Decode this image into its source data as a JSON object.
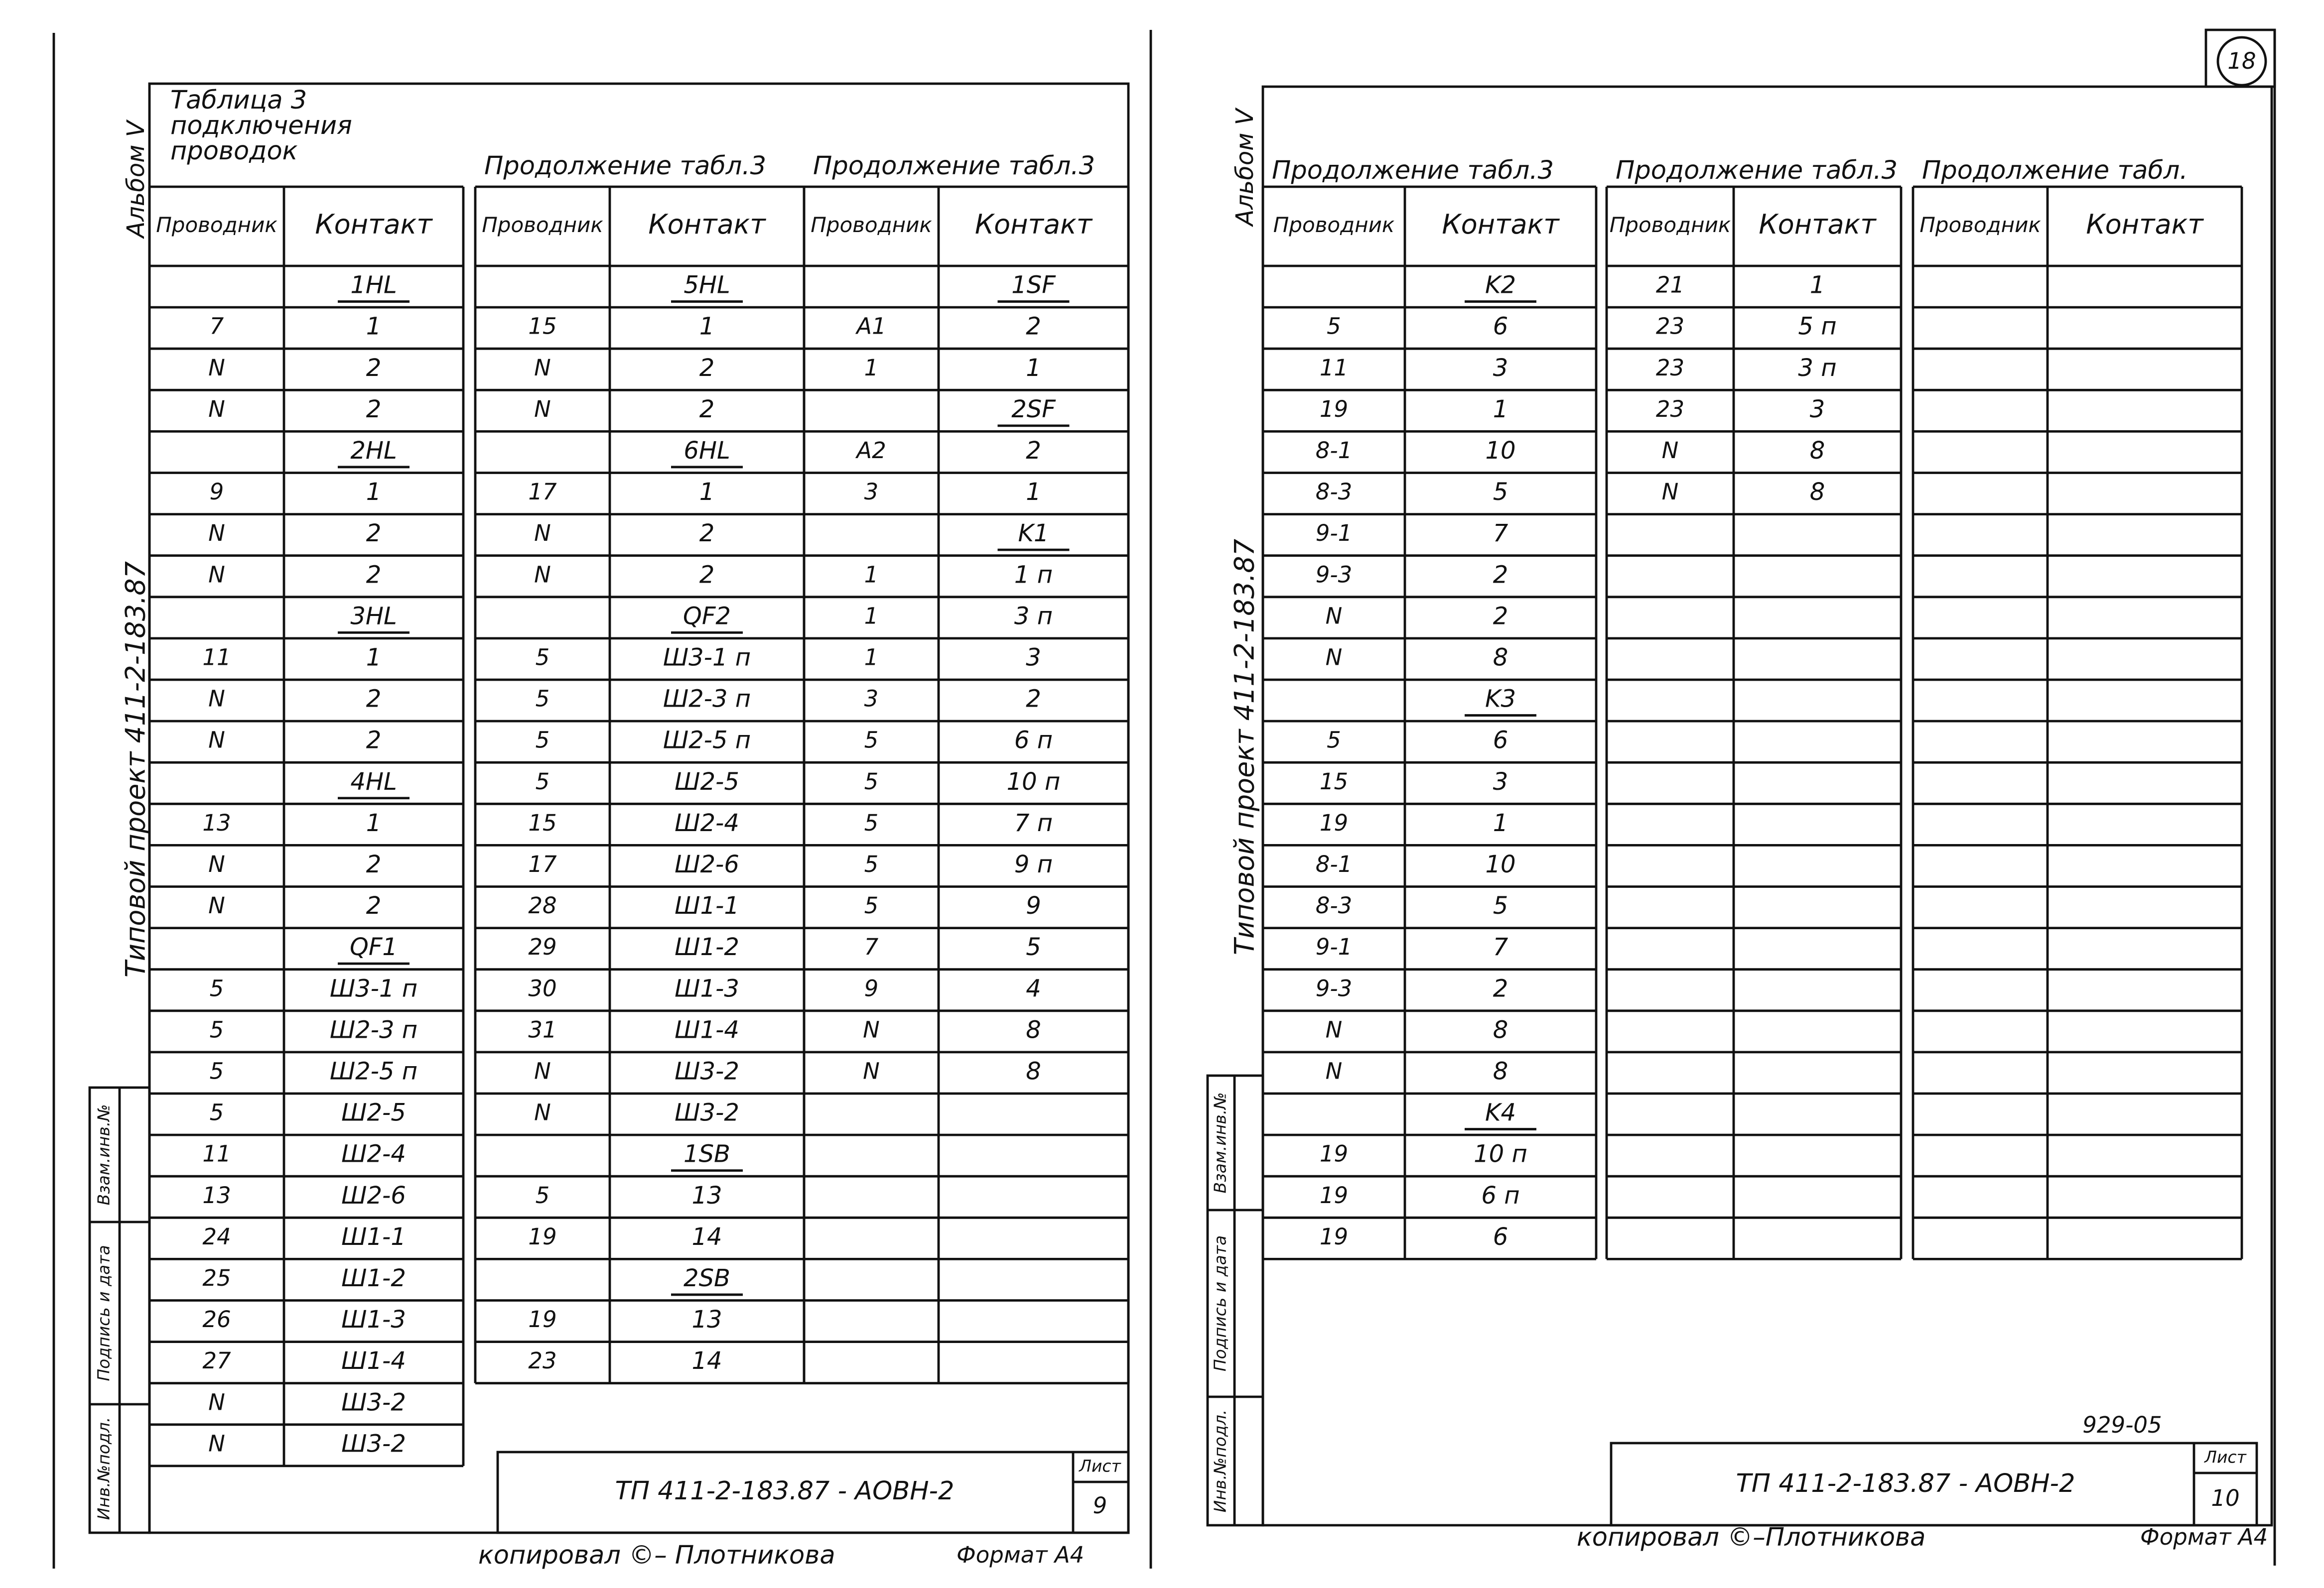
{
  "left": {
    "album": "Альбом V",
    "project": "Типовой проект 411-2-183.87",
    "side_stamp": [
      "Взам.инв.№",
      "Подпись и дата",
      "Инв.№подл."
    ],
    "tables": [
      {
        "title": [
          "Таблица 3",
          "подключения",
          "проводок"
        ],
        "headers": [
          "Проводник",
          "Контакт"
        ],
        "rows": [
          [
            null,
            "1HL"
          ],
          [
            "7",
            "1"
          ],
          [
            "N",
            "2"
          ],
          [
            "N",
            "2"
          ],
          [
            null,
            "2HL"
          ],
          [
            "9",
            "1"
          ],
          [
            "N",
            "2"
          ],
          [
            "N",
            "2"
          ],
          [
            null,
            "3HL"
          ],
          [
            "11",
            "1"
          ],
          [
            "N",
            "2"
          ],
          [
            "N",
            "2"
          ],
          [
            null,
            "4HL"
          ],
          [
            "13",
            "1"
          ],
          [
            "N",
            "2"
          ],
          [
            "N",
            "2"
          ],
          [
            null,
            "QF1"
          ],
          [
            "5",
            "Ш3-1 п"
          ],
          [
            "5",
            "Ш2-3 п"
          ],
          [
            "5",
            "Ш2-5 п"
          ],
          [
            "5",
            "Ш2-5"
          ],
          [
            "11",
            "Ш2-4"
          ],
          [
            "13",
            "Ш2-6"
          ],
          [
            "24",
            "Ш1-1"
          ],
          [
            "25",
            "Ш1-2"
          ],
          [
            "26",
            "Ш1-3"
          ],
          [
            "27",
            "Ш1-4"
          ],
          [
            "N",
            "Ш3-2"
          ],
          [
            "N",
            "Ш3-2"
          ]
        ]
      },
      {
        "title": [
          "Продолжение табл.3"
        ],
        "headers": [
          "Проводник",
          "Контакт"
        ],
        "rows": [
          [
            null,
            "5HL"
          ],
          [
            "15",
            "1"
          ],
          [
            "N",
            "2"
          ],
          [
            "N",
            "2"
          ],
          [
            null,
            "6HL"
          ],
          [
            "17",
            "1"
          ],
          [
            "N",
            "2"
          ],
          [
            "N",
            "2"
          ],
          [
            null,
            "QF2"
          ],
          [
            "5",
            "Ш3-1 п"
          ],
          [
            "5",
            "Ш2-3 п"
          ],
          [
            "5",
            "Ш2-5 п"
          ],
          [
            "5",
            "Ш2-5"
          ],
          [
            "15",
            "Ш2-4"
          ],
          [
            "17",
            "Ш2-6"
          ],
          [
            "28",
            "Ш1-1"
          ],
          [
            "29",
            "Ш1-2"
          ],
          [
            "30",
            "Ш1-3"
          ],
          [
            "31",
            "Ш1-4"
          ],
          [
            "N",
            "Ш3-2"
          ],
          [
            "N",
            "Ш3-2"
          ],
          [
            null,
            "1SB"
          ],
          [
            "5",
            "13"
          ],
          [
            "19",
            "14"
          ],
          [
            null,
            "2SB"
          ],
          [
            "19",
            "13"
          ],
          [
            "23",
            "14"
          ]
        ]
      },
      {
        "title": [
          "Продолжение табл.3"
        ],
        "headers": [
          "Проводник",
          "Контакт"
        ],
        "rows": [
          [
            null,
            "1SF"
          ],
          [
            "A1",
            "2"
          ],
          [
            "1",
            "1"
          ],
          [
            null,
            "2SF"
          ],
          [
            "A2",
            "2"
          ],
          [
            "3",
            "1"
          ],
          [
            null,
            "K1"
          ],
          [
            "1",
            "1 п"
          ],
          [
            "1",
            "3 п"
          ],
          [
            "1",
            "3"
          ],
          [
            "3",
            "2"
          ],
          [
            "5",
            "6 п"
          ],
          [
            "5",
            "10 п"
          ],
          [
            "5",
            "7 п"
          ],
          [
            "5",
            "9 п"
          ],
          [
            "5",
            "9"
          ],
          [
            "7",
            "5"
          ],
          [
            "9",
            "4"
          ],
          [
            "N",
            "8"
          ],
          [
            "N",
            "8"
          ]
        ]
      }
    ],
    "stamp": {
      "code": "ТП 411-2-183.87 - АОВН-2",
      "sheet_label": "Лист",
      "sheet": "9"
    },
    "footer": {
      "copied": "копировал ©– Плотникова",
      "format": "Формат А4"
    }
  },
  "right": {
    "page": "18",
    "album": "Альбом V",
    "project": "Типовой проект 411-2-183.87",
    "side_stamp": [
      "Взам.инв.№",
      "Подпись и дата",
      "Инв.№подл."
    ],
    "tables": [
      {
        "title": [
          "Продолжение табл.3"
        ],
        "headers": [
          "Проводник",
          "Контакт"
        ],
        "rows": [
          [
            null,
            "K2"
          ],
          [
            "5",
            "6"
          ],
          [
            "11",
            "3"
          ],
          [
            "19",
            "1"
          ],
          [
            "8-1",
            "10"
          ],
          [
            "8-3",
            "5"
          ],
          [
            "9-1",
            "7"
          ],
          [
            "9-3",
            "2"
          ],
          [
            "N",
            "2"
          ],
          [
            "N",
            "8"
          ],
          [
            null,
            "K3"
          ],
          [
            "5",
            "6"
          ],
          [
            "15",
            "3"
          ],
          [
            "19",
            "1"
          ],
          [
            "8-1",
            "10"
          ],
          [
            "8-3",
            "5"
          ],
          [
            "9-1",
            "7"
          ],
          [
            "9-3",
            "2"
          ],
          [
            "N",
            "8"
          ],
          [
            "N",
            "8"
          ],
          [
            null,
            "K4"
          ],
          [
            "19",
            "10 п"
          ],
          [
            "19",
            "6 п"
          ],
          [
            "19",
            "6"
          ]
        ]
      },
      {
        "title": [
          "Продолжение табл.3"
        ],
        "headers": [
          "Проводник",
          "Контакт"
        ],
        "rows": [
          [
            "21",
            "1"
          ],
          [
            "23",
            "5 п"
          ],
          [
            "23",
            "3 п"
          ],
          [
            "23",
            "3"
          ],
          [
            "N",
            "8"
          ],
          [
            "N",
            "8"
          ]
        ]
      },
      {
        "title": [
          "Продолжение табл."
        ],
        "headers": [
          "Проводник",
          "Контакт"
        ],
        "rows": []
      }
    ],
    "archive": "929-05",
    "stamp": {
      "code": "ТП 411-2-183.87 - АОВН-2",
      "sheet_label": "Лист",
      "sheet": "10"
    },
    "footer": {
      "copied": "копировал ©–Плотникова",
      "format": "Формат А4"
    }
  }
}
